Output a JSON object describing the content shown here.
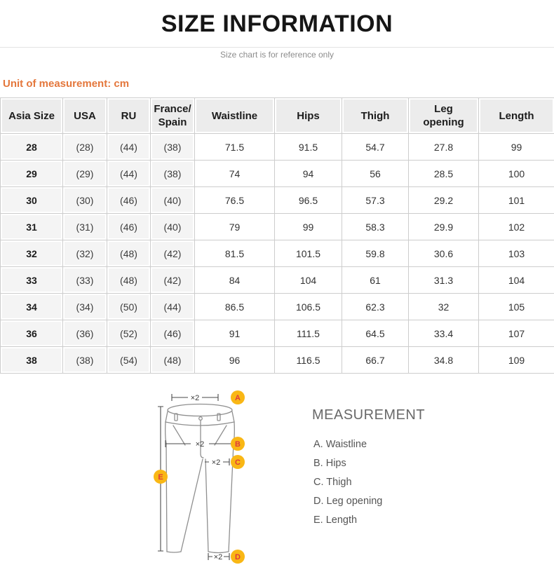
{
  "page": {
    "title": "SIZE INFORMATION",
    "subtitle": "Size chart is for reference only",
    "unit_note": "Unit of measurement: cm"
  },
  "size_table": {
    "columns": [
      "Asia Size",
      "USA",
      "RU",
      "France/\nSpain",
      "Waistline",
      "Hips",
      "Thigh",
      "Leg\nopening",
      "Length"
    ],
    "rows": [
      [
        "28",
        "(28)",
        "(44)",
        "(38)",
        "71.5",
        "91.5",
        "54.7",
        "27.8",
        "99"
      ],
      [
        "29",
        "(29)",
        "(44)",
        "(38)",
        "74",
        "94",
        "56",
        "28.5",
        "100"
      ],
      [
        "30",
        "(30)",
        "(46)",
        "(40)",
        "76.5",
        "96.5",
        "57.3",
        "29.2",
        "101"
      ],
      [
        "31",
        "(31)",
        "(46)",
        "(40)",
        "79",
        "99",
        "58.3",
        "29.9",
        "102"
      ],
      [
        "32",
        "(32)",
        "(48)",
        "(42)",
        "81.5",
        "101.5",
        "59.8",
        "30.6",
        "103"
      ],
      [
        "33",
        "(33)",
        "(48)",
        "(42)",
        "84",
        "104",
        "61",
        "31.3",
        "104"
      ],
      [
        "34",
        "(34)",
        "(50)",
        "(44)",
        "86.5",
        "106.5",
        "62.3",
        "32",
        "105"
      ],
      [
        "36",
        "(36)",
        "(52)",
        "(46)",
        "91",
        "111.5",
        "64.5",
        "33.4",
        "107"
      ],
      [
        "38",
        "(38)",
        "(54)",
        "(48)",
        "96",
        "116.5",
        "66.7",
        "34.8",
        "109"
      ]
    ]
  },
  "diagram": {
    "legend_title": "MEASUREMENT",
    "legend_items": [
      "A. Waistline",
      "B. Hips",
      "C. Thigh",
      "D. Leg opening",
      "E. Length"
    ],
    "badges": [
      "A",
      "B",
      "C",
      "D",
      "E"
    ],
    "multiplier_label": "×2"
  },
  "colors": {
    "accent_orange": "#E4773C",
    "badge_yellow": "#F9B715",
    "badge_letter_red": "#E03A3C",
    "header_gray": "#ECECEC",
    "cell_gray": "#F4F4F4",
    "border_gray": "#CDCDCD",
    "subtitle_gray": "#8C8C8C",
    "pants_outline_gray": "#8F8F8F"
  }
}
